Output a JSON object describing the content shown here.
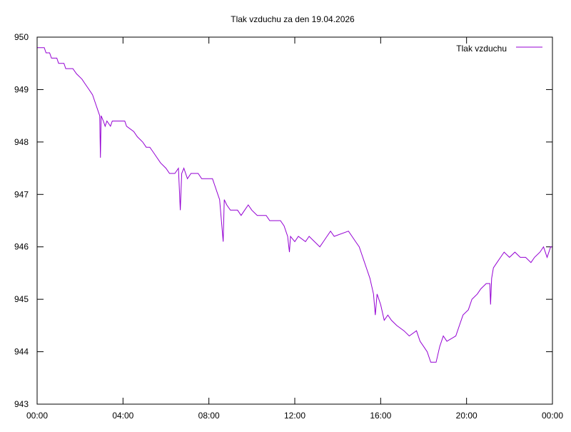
{
  "chart_data": {
    "type": "line",
    "title": "Tlak vzduchu za den 19.04.2026",
    "xlabel": "",
    "ylabel": "",
    "x_tick_labels": [
      "00:00",
      "04:00",
      "08:00",
      "12:00",
      "16:00",
      "20:00",
      "00:00"
    ],
    "y_tick_labels": [
      "943",
      "944",
      "945",
      "946",
      "947",
      "948",
      "949",
      "950"
    ],
    "xlim": [
      "00:00",
      "24:00"
    ],
    "ylim": [
      943,
      950
    ],
    "grid": false,
    "legend_position": "top-right",
    "series": [
      {
        "name": "Tlak vzduchu",
        "color": "#9400d3",
        "points": [
          [
            "00:00",
            949.8
          ],
          [
            "00:20",
            949.8
          ],
          [
            "00:25",
            949.7
          ],
          [
            "00:35",
            949.7
          ],
          [
            "00:40",
            949.6
          ],
          [
            "00:55",
            949.6
          ],
          [
            "01:00",
            949.5
          ],
          [
            "01:15",
            949.5
          ],
          [
            "01:20",
            949.4
          ],
          [
            "01:40",
            949.4
          ],
          [
            "01:50",
            949.3
          ],
          [
            "02:05",
            949.2
          ],
          [
            "02:15",
            949.1
          ],
          [
            "02:25",
            949.0
          ],
          [
            "02:35",
            948.9
          ],
          [
            "02:45",
            948.7
          ],
          [
            "02:50",
            948.6
          ],
          [
            "02:55",
            948.5
          ],
          [
            "02:57",
            947.7
          ],
          [
            "02:59",
            948.5
          ],
          [
            "03:05",
            948.4
          ],
          [
            "03:10",
            948.3
          ],
          [
            "03:15",
            948.4
          ],
          [
            "03:25",
            948.3
          ],
          [
            "03:30",
            948.4
          ],
          [
            "04:05",
            948.4
          ],
          [
            "04:10",
            948.3
          ],
          [
            "04:30",
            948.2
          ],
          [
            "04:40",
            948.1
          ],
          [
            "04:55",
            948.0
          ],
          [
            "05:05",
            947.9
          ],
          [
            "05:15",
            947.9
          ],
          [
            "05:25",
            947.8
          ],
          [
            "05:35",
            947.7
          ],
          [
            "05:45",
            947.6
          ],
          [
            "06:00",
            947.5
          ],
          [
            "06:10",
            947.4
          ],
          [
            "06:25",
            947.4
          ],
          [
            "06:35",
            947.5
          ],
          [
            "06:40",
            946.7
          ],
          [
            "06:44",
            947.4
          ],
          [
            "06:50",
            947.5
          ],
          [
            "07:00",
            947.3
          ],
          [
            "07:10",
            947.4
          ],
          [
            "07:30",
            947.4
          ],
          [
            "07:40",
            947.3
          ],
          [
            "08:10",
            947.3
          ],
          [
            "08:15",
            947.2
          ],
          [
            "08:25",
            947.0
          ],
          [
            "08:30",
            946.9
          ],
          [
            "08:40",
            946.1
          ],
          [
            "08:43",
            946.9
          ],
          [
            "08:50",
            946.8
          ],
          [
            "09:00",
            946.7
          ],
          [
            "09:20",
            946.7
          ],
          [
            "09:30",
            946.6
          ],
          [
            "09:40",
            946.7
          ],
          [
            "09:50",
            946.8
          ],
          [
            "10:00",
            946.7
          ],
          [
            "10:15",
            946.6
          ],
          [
            "10:40",
            946.6
          ],
          [
            "10:50",
            946.5
          ],
          [
            "11:20",
            946.5
          ],
          [
            "11:30",
            946.4
          ],
          [
            "11:40",
            946.2
          ],
          [
            "11:45",
            945.9
          ],
          [
            "11:48",
            946.2
          ],
          [
            "12:00",
            946.1
          ],
          [
            "12:10",
            946.2
          ],
          [
            "12:30",
            946.1
          ],
          [
            "12:40",
            946.2
          ],
          [
            "12:55",
            946.1
          ],
          [
            "13:10",
            946.0
          ],
          [
            "13:20",
            946.1
          ],
          [
            "13:30",
            946.2
          ],
          [
            "13:40",
            946.3
          ],
          [
            "13:50",
            946.2
          ],
          [
            "14:30",
            946.3
          ],
          [
            "14:40",
            946.2
          ],
          [
            "14:50",
            946.1
          ],
          [
            "15:00",
            946.0
          ],
          [
            "15:10",
            945.8
          ],
          [
            "15:20",
            945.6
          ],
          [
            "15:30",
            945.4
          ],
          [
            "15:40",
            945.1
          ],
          [
            "15:45",
            944.7
          ],
          [
            "15:50",
            945.1
          ],
          [
            "16:00",
            944.9
          ],
          [
            "16:10",
            944.6
          ],
          [
            "16:20",
            944.7
          ],
          [
            "16:30",
            944.6
          ],
          [
            "16:45",
            944.5
          ],
          [
            "17:05",
            944.4
          ],
          [
            "17:20",
            944.3
          ],
          [
            "17:40",
            944.4
          ],
          [
            "17:50",
            944.2
          ],
          [
            "18:00",
            944.1
          ],
          [
            "18:10",
            944.0
          ],
          [
            "18:20",
            943.8
          ],
          [
            "18:35",
            943.8
          ],
          [
            "18:45",
            944.1
          ],
          [
            "18:55",
            944.3
          ],
          [
            "19:05",
            944.2
          ],
          [
            "19:30",
            944.3
          ],
          [
            "19:40",
            944.5
          ],
          [
            "19:50",
            944.7
          ],
          [
            "20:05",
            944.8
          ],
          [
            "20:15",
            945.0
          ],
          [
            "20:30",
            945.1
          ],
          [
            "20:40",
            945.2
          ],
          [
            "20:55",
            945.3
          ],
          [
            "21:05",
            945.3
          ],
          [
            "21:07",
            944.9
          ],
          [
            "21:10",
            945.4
          ],
          [
            "21:15",
            945.6
          ],
          [
            "21:25",
            945.7
          ],
          [
            "21:35",
            945.8
          ],
          [
            "21:45",
            945.9
          ],
          [
            "22:00",
            945.8
          ],
          [
            "22:15",
            945.9
          ],
          [
            "22:30",
            945.8
          ],
          [
            "22:45",
            945.8
          ],
          [
            "23:00",
            945.7
          ],
          [
            "23:10",
            945.8
          ],
          [
            "23:25",
            945.9
          ],
          [
            "23:35",
            946.0
          ],
          [
            "23:45",
            945.8
          ],
          [
            "23:55",
            946.0
          ],
          [
            "24:00",
            946.0
          ]
        ]
      }
    ]
  }
}
